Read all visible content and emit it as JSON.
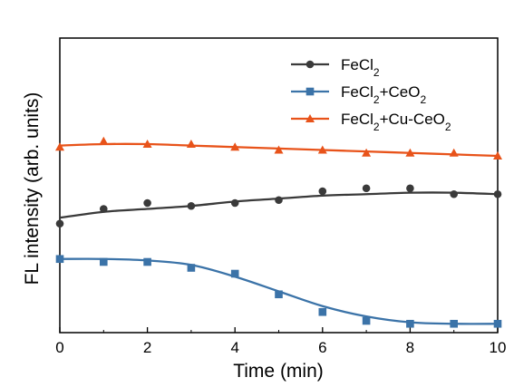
{
  "chart_data": {
    "type": "line",
    "xlabel": "Time (min)",
    "ylabel": "FL intensity (arb. units)",
    "xlim": [
      0,
      10
    ],
    "ylim": [
      0,
      1
    ],
    "x_ticks": [
      "0",
      "2",
      "4",
      "6",
      "8",
      "10"
    ],
    "y_ticks_shown": false,
    "grid": false,
    "legend_position": "top-right",
    "series": [
      {
        "name": "FeCl2",
        "name_parts": [
          {
            "t": "FeCl"
          },
          {
            "t": "2",
            "sub": true
          }
        ],
        "color": "#3a3a3a",
        "marker": "circle",
        "points_x": [
          0,
          1,
          2,
          3,
          4,
          5,
          6,
          7,
          8,
          9,
          10
        ],
        "points_y": [
          0.37,
          0.42,
          0.44,
          0.43,
          0.44,
          0.45,
          0.48,
          0.49,
          0.49,
          0.47,
          0.47
        ],
        "fit_y": [
          0.39,
          0.41,
          0.42,
          0.43,
          0.445,
          0.455,
          0.465,
          0.47,
          0.475,
          0.475,
          0.47
        ]
      },
      {
        "name": "FeCl2+CeO2",
        "name_parts": [
          {
            "t": "FeCl"
          },
          {
            "t": "2",
            "sub": true
          },
          {
            "t": "+CeO"
          },
          {
            "t": "2",
            "sub": true
          }
        ],
        "color": "#3b73a8",
        "marker": "square",
        "points_x": [
          0,
          1,
          2,
          3,
          4,
          5,
          6,
          7,
          8,
          9,
          10
        ],
        "points_y": [
          0.25,
          0.24,
          0.24,
          0.22,
          0.2,
          0.13,
          0.07,
          0.04,
          0.03,
          0.03,
          0.03
        ],
        "fit_y": [
          0.25,
          0.25,
          0.245,
          0.23,
          0.19,
          0.14,
          0.09,
          0.055,
          0.035,
          0.03,
          0.03
        ]
      },
      {
        "name": "FeCl2+Cu-CeO2",
        "name_parts": [
          {
            "t": "FeCl"
          },
          {
            "t": "2",
            "sub": true
          },
          {
            "t": "+Cu-CeO"
          },
          {
            "t": "2",
            "sub": true
          }
        ],
        "color": "#e8531a",
        "marker": "triangle",
        "points_x": [
          0,
          1,
          2,
          3,
          4,
          5,
          6,
          7,
          8,
          9,
          10
        ],
        "points_y": [
          0.63,
          0.65,
          0.64,
          0.64,
          0.63,
          0.62,
          0.62,
          0.61,
          0.61,
          0.61,
          0.6
        ],
        "fit_y": [
          0.635,
          0.64,
          0.64,
          0.635,
          0.63,
          0.625,
          0.62,
          0.615,
          0.61,
          0.605,
          0.6
        ]
      }
    ]
  }
}
